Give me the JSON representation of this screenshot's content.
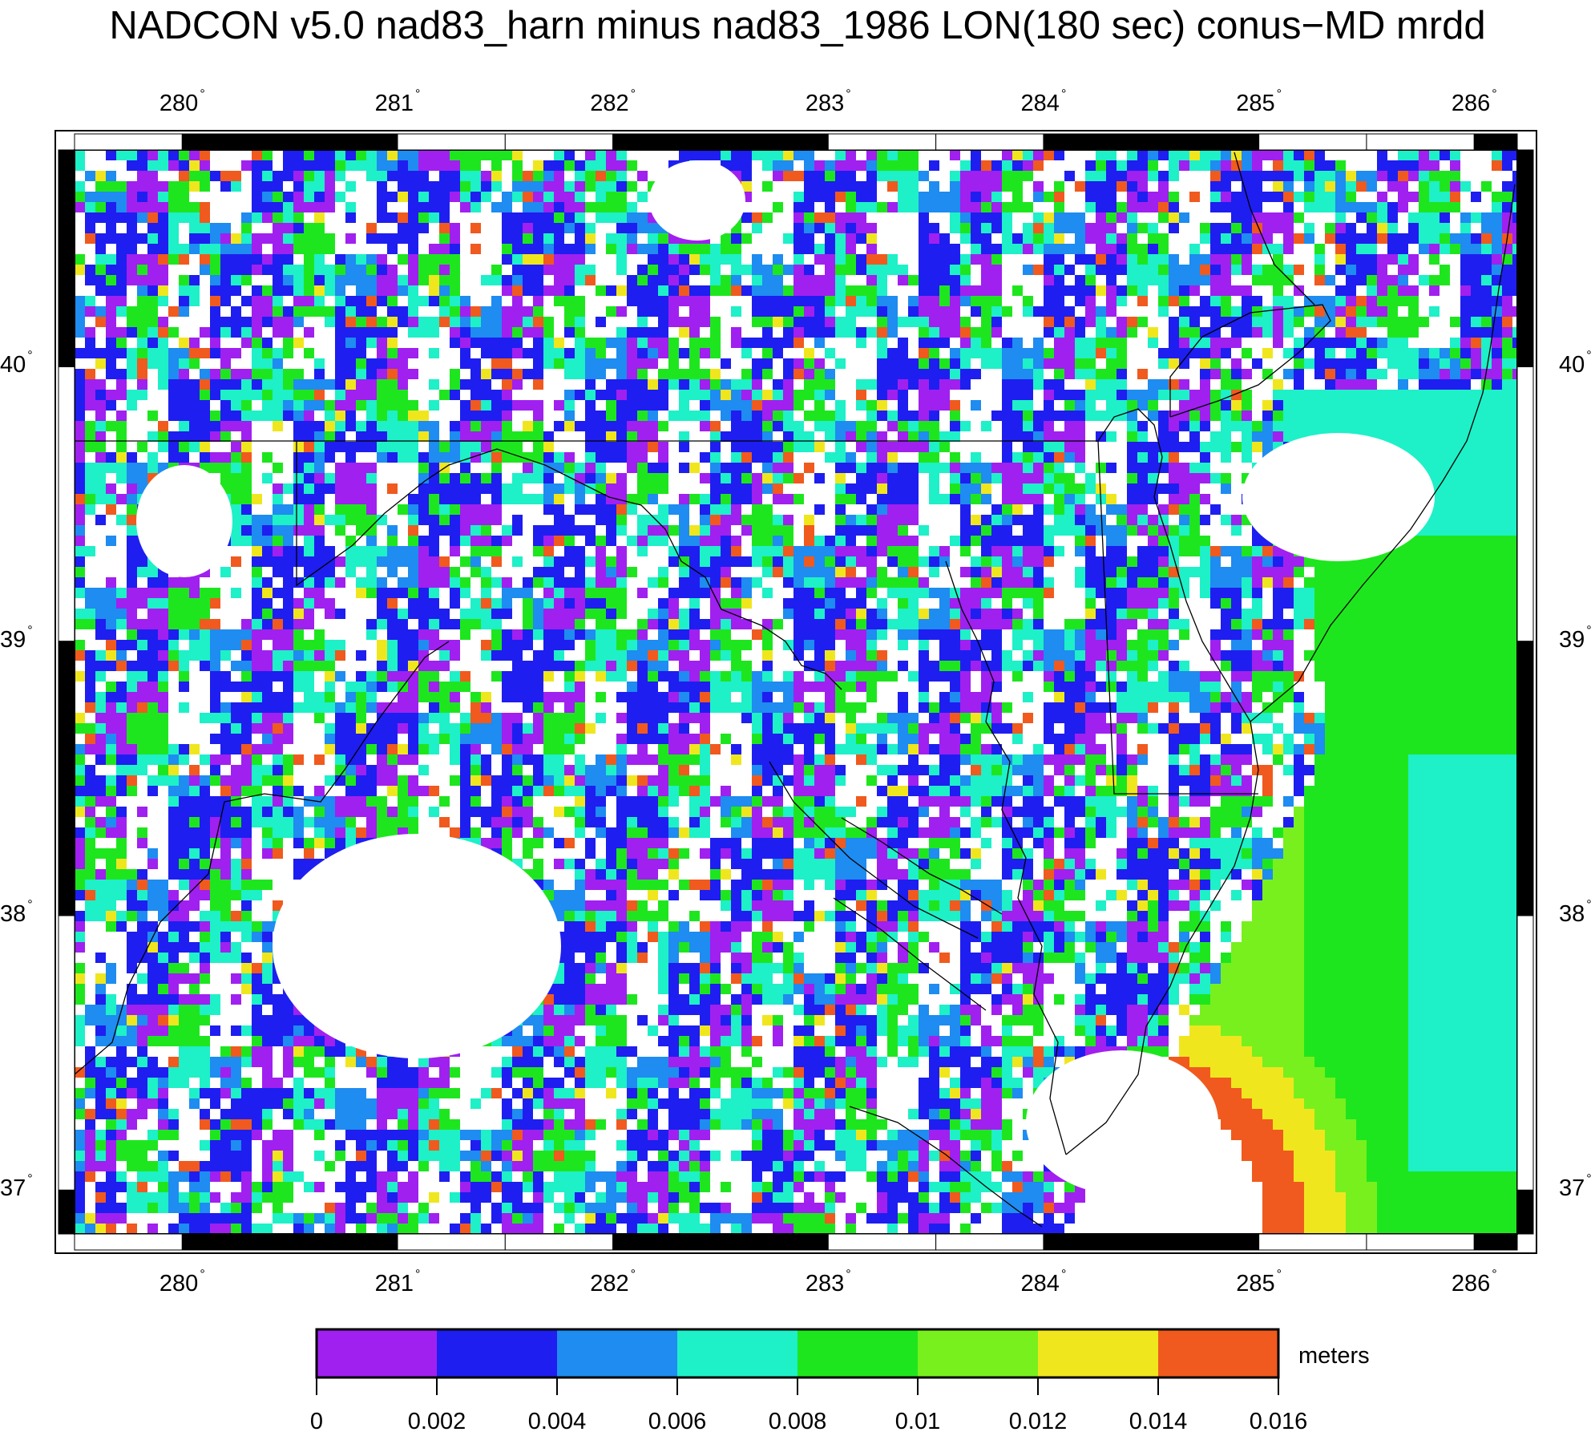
{
  "title": "NADCON v5.0 nad83_harn minus nad83_1986 LON(180 sec) conus−MD mrdd",
  "map": {
    "lon_range": [
      279.5,
      286.2
    ],
    "lat_range": [
      36.84,
      40.79
    ],
    "lon_ticks": [
      "280",
      "281",
      "282",
      "283",
      "284",
      "285",
      "286"
    ],
    "lat_ticks": [
      "37",
      "38",
      "39",
      "40"
    ],
    "degree_symbol": "°"
  },
  "colorbar": {
    "units": "meters",
    "tick_labels": [
      "0",
      "0.002",
      "0.004",
      "0.006",
      "0.008",
      "0.01",
      "0.012",
      "0.014",
      "0.016"
    ],
    "colors": [
      "#a020f0",
      "#1e1ef0",
      "#1e8cf0",
      "#1ef0c8",
      "#1ee61e",
      "#78f01e",
      "#f0e61e",
      "#f05a1e"
    ]
  },
  "palette": {
    "violet": "#a020f0",
    "blue": "#1e1ef0",
    "sky": "#1e8cf0",
    "cyan": "#1ef0c8",
    "green": "#1ee61e",
    "lime": "#78f01e",
    "yellow": "#f0e61e",
    "orange": "#f05a1e",
    "white": "#ffffff"
  }
}
